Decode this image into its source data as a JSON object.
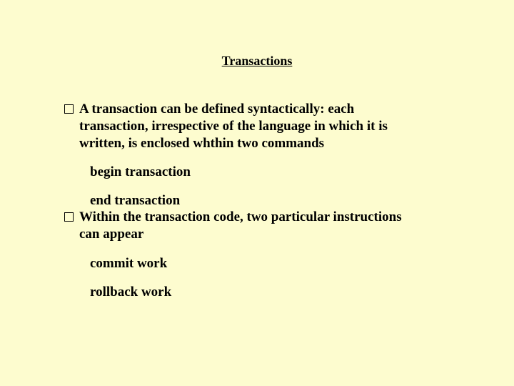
{
  "slide": {
    "title": "Transactions",
    "bullet1": {
      "line1": "A transaction can be defined syntactically: each",
      "line2": "transaction, irrespective of the language in which it is",
      "line3": "written, is enclosed whthin two commands"
    },
    "sub1": "begin transaction",
    "sub2": "end transaction",
    "bullet2": {
      "line1": "Within the transaction code, two particular instructions",
      "line2": "can appear"
    },
    "sub3": "commit work",
    "sub4": "rollback work",
    "colors": {
      "background": "#fdfccf",
      "text": "#000000",
      "bullet_border": "#000000"
    },
    "fontsize_pt": {
      "title": 18,
      "body": 19
    }
  }
}
